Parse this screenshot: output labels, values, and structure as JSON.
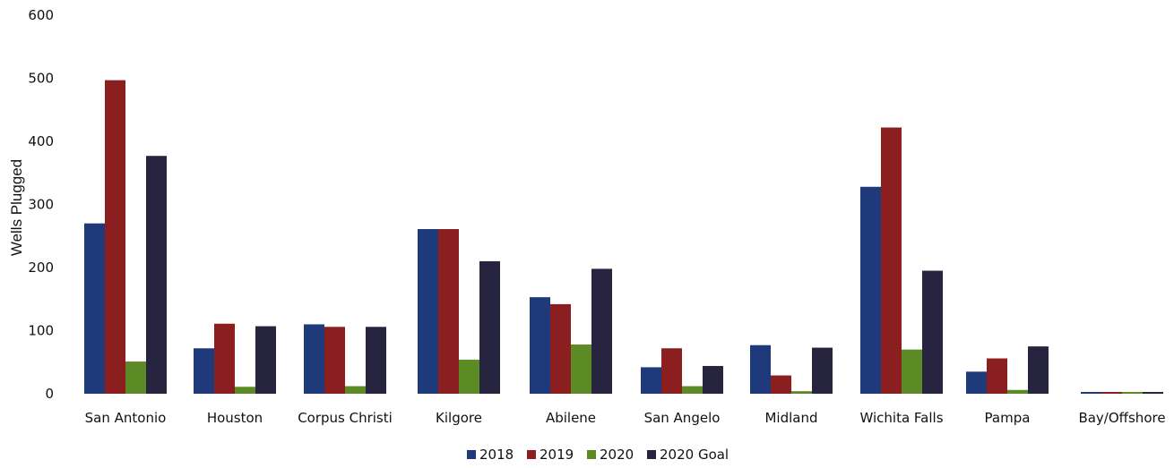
{
  "chart_data": {
    "type": "bar",
    "title": "",
    "xlabel": "",
    "ylabel": "Wells Plugged",
    "ylim": [
      0,
      600
    ],
    "yticks": [
      0,
      100,
      200,
      300,
      400,
      500,
      600
    ],
    "grid": false,
    "legend_position": "bottom",
    "categories": [
      "San Antonio",
      "Houston",
      "Corpus Christi",
      "Kilgore",
      "Abilene",
      "San Angelo",
      "Midland",
      "Wichita Falls",
      "Pampa",
      "Bay/Offshore"
    ],
    "series": [
      {
        "name": "2018",
        "color": "#1F3A7A",
        "values": [
          270,
          72,
          110,
          261,
          153,
          42,
          77,
          328,
          35,
          0
        ]
      },
      {
        "name": "2019",
        "color": "#8B1E1E",
        "values": [
          497,
          111,
          106,
          261,
          142,
          72,
          29,
          422,
          56,
          0
        ]
      },
      {
        "name": "2020",
        "color": "#5C8A24",
        "values": [
          51,
          11,
          12,
          54,
          78,
          12,
          4,
          70,
          6,
          0
        ]
      },
      {
        "name": "2020 Goal",
        "color": "#26243F",
        "values": [
          377,
          107,
          106,
          210,
          198,
          44,
          73,
          195,
          75,
          2
        ]
      }
    ]
  }
}
